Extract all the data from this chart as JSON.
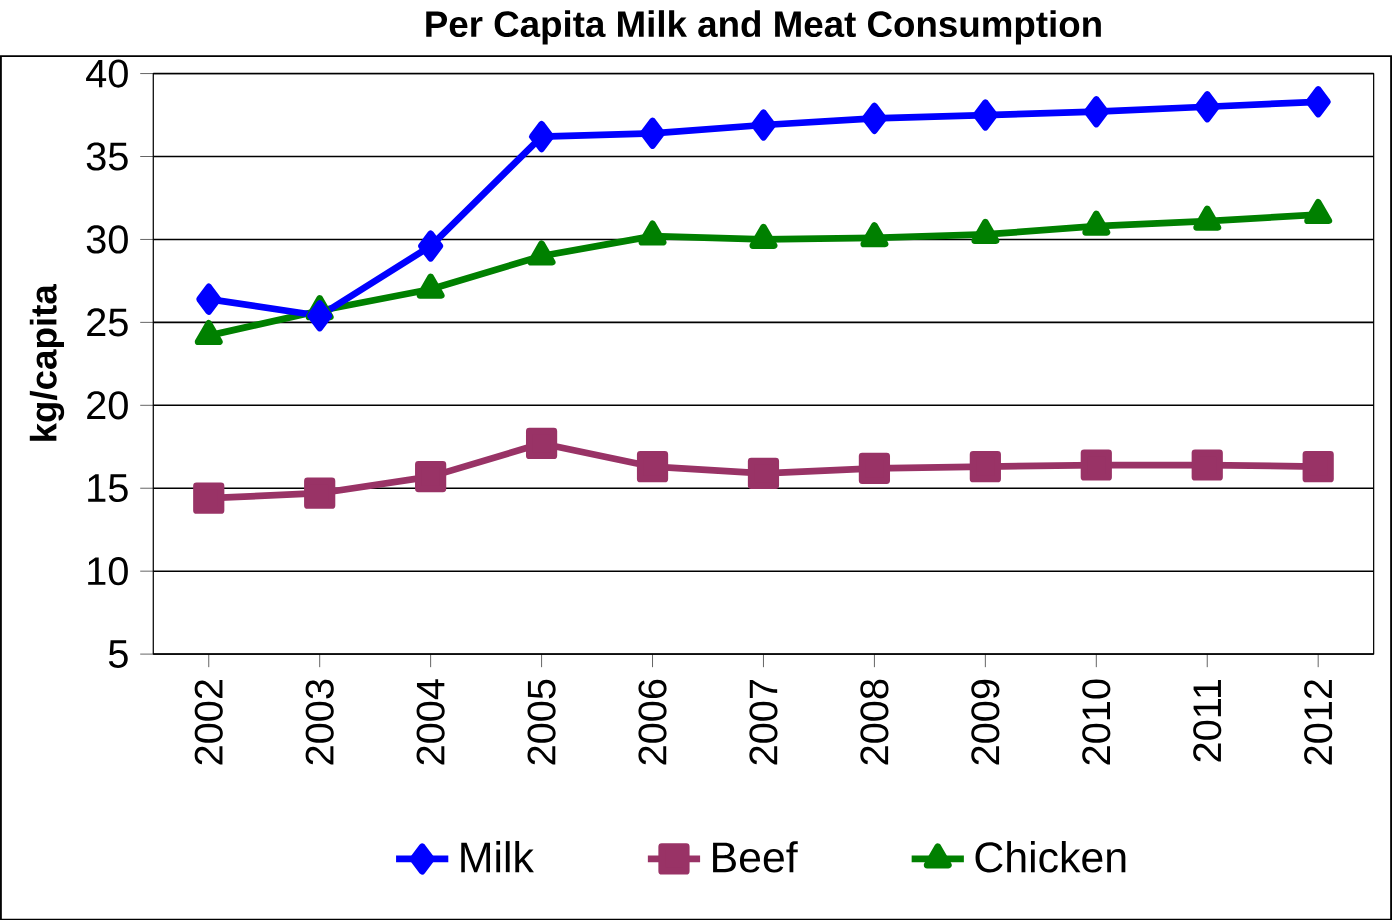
{
  "chart_data": {
    "type": "line",
    "title": "Per Capita Milk and Meat Consumption",
    "ylabel": "kg/capita",
    "categories": [
      "2002",
      "2003",
      "2004",
      "2005",
      "2006",
      "2007",
      "2008",
      "2009",
      "2010",
      "2011",
      "2012"
    ],
    "series": [
      {
        "name": "Milk",
        "color": "#0000ff",
        "marker": "diamond",
        "values": [
          26.4,
          25.4,
          29.6,
          36.2,
          36.4,
          36.9,
          37.3,
          37.5,
          37.7,
          38.0,
          38.3
        ]
      },
      {
        "name": "Beef",
        "color": "#993366",
        "marker": "square",
        "values": [
          14.4,
          14.7,
          15.7,
          17.7,
          16.3,
          15.9,
          16.2,
          16.3,
          16.4,
          16.4,
          16.3
        ]
      },
      {
        "name": "Chicken",
        "color": "#008000",
        "marker": "triangle",
        "values": [
          24.2,
          25.7,
          27.0,
          29.0,
          30.2,
          30.0,
          30.1,
          30.3,
          30.8,
          31.1,
          31.5
        ]
      }
    ],
    "ylim": [
      5,
      40
    ],
    "yticks": [
      5,
      10,
      15,
      20,
      25,
      30,
      35,
      40
    ],
    "grid": "y",
    "legend": "bottom"
  }
}
